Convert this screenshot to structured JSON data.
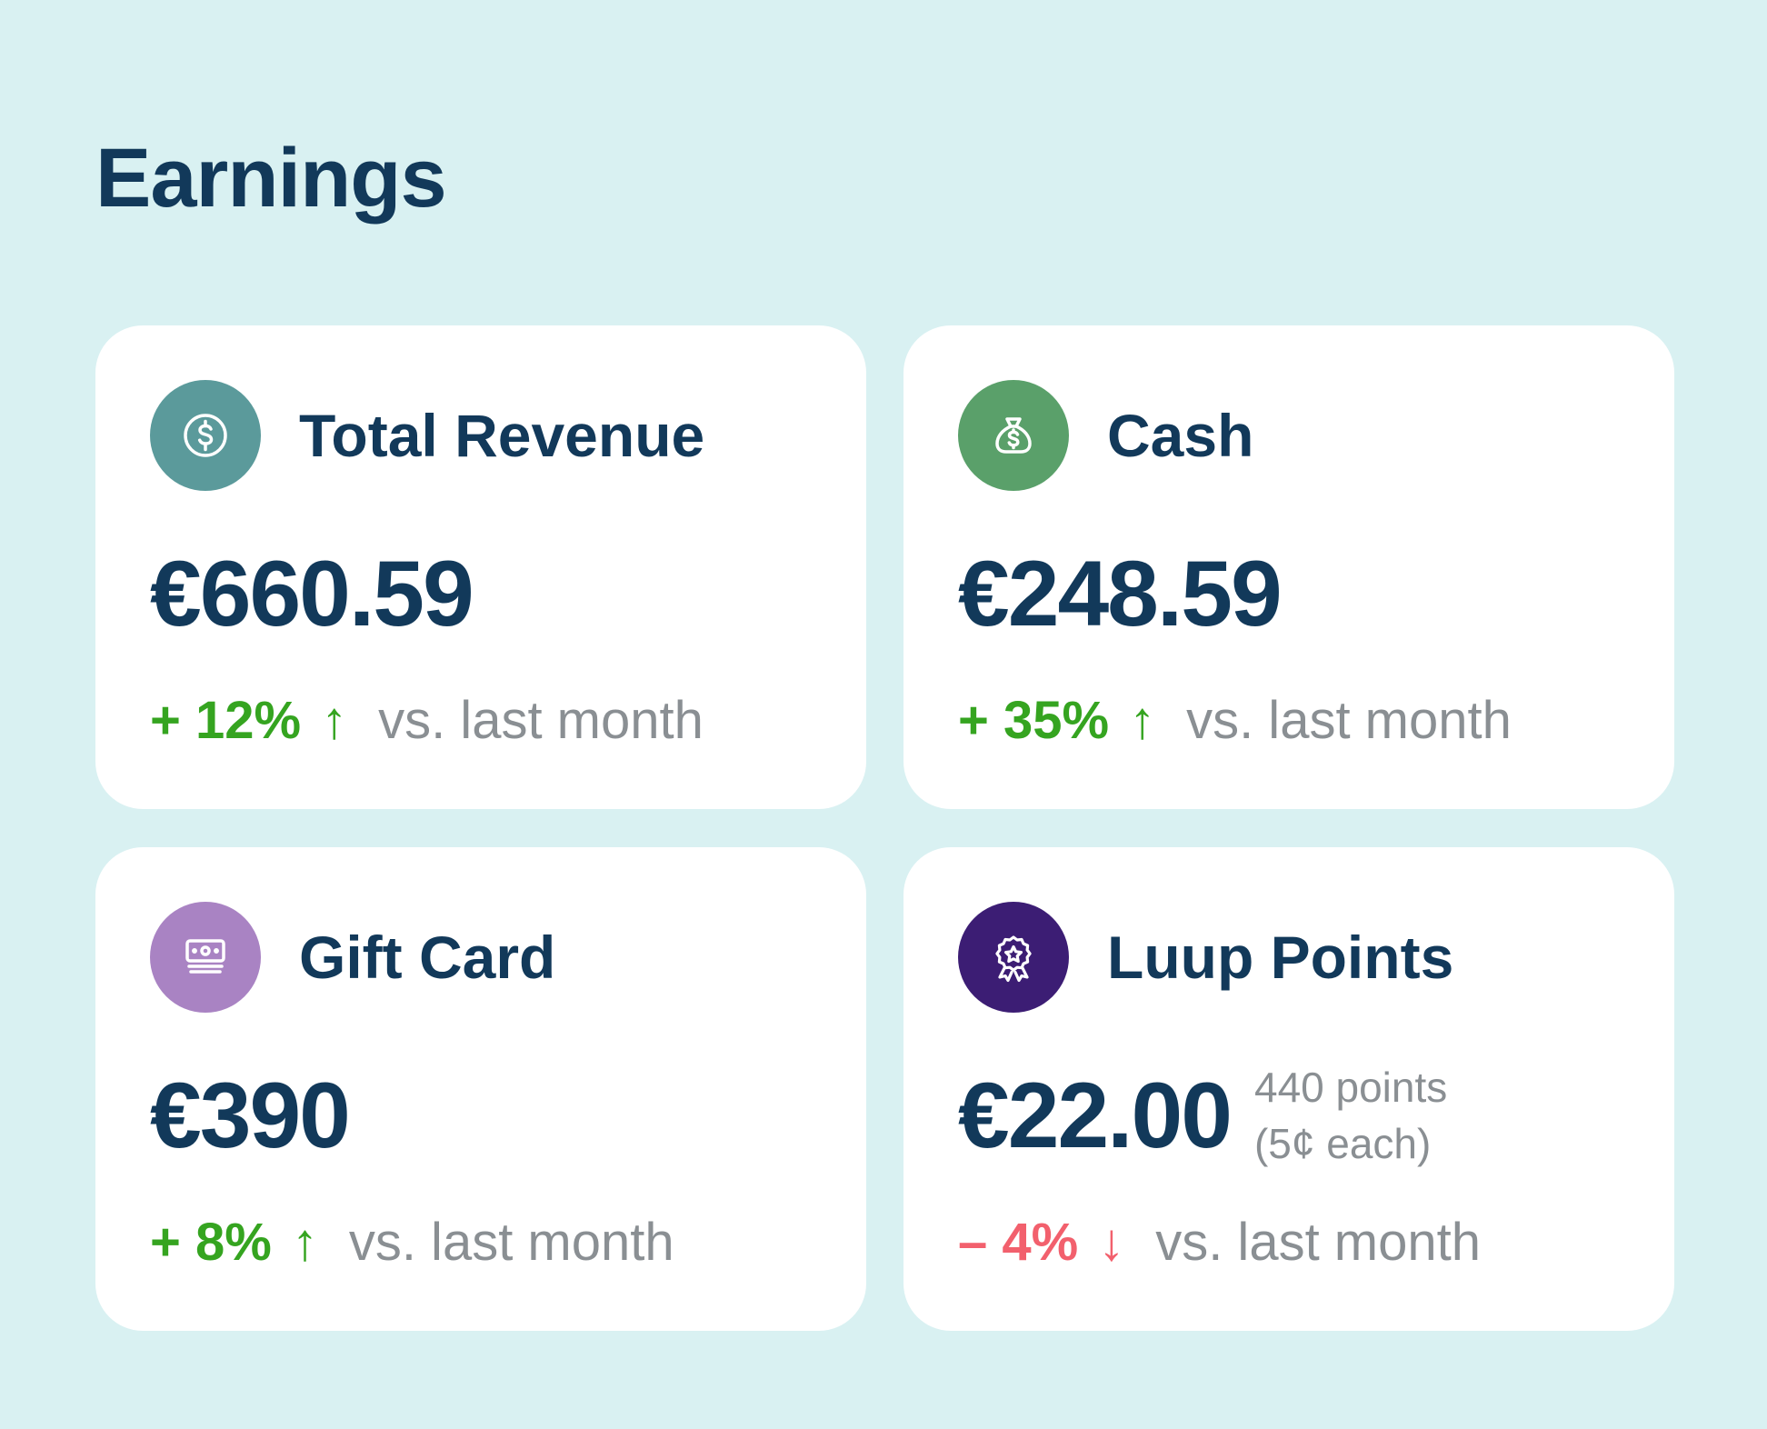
{
  "page": {
    "title": "Earnings"
  },
  "colors": {
    "background": "#d9f1f2",
    "text_primary": "#12395a",
    "text_muted": "#8a8f93",
    "positive": "#35a420",
    "negative": "#f2606d"
  },
  "cards": [
    {
      "title": "Total Revenue",
      "icon": "dollar-coin-icon",
      "icon_color": "#5b9a9b",
      "amount": "€660.59",
      "change": "+ 12%",
      "direction": "up",
      "arrow": "↑",
      "compare": "vs. last month"
    },
    {
      "title": "Cash",
      "icon": "money-bag-icon",
      "icon_color": "#5aa06a",
      "amount": "€248.59",
      "change": "+ 35%",
      "direction": "up",
      "arrow": "↑",
      "compare": "vs. last month"
    },
    {
      "title": "Gift Card",
      "icon": "gift-card-icon",
      "icon_color": "#a983c3",
      "amount": "€390",
      "change": "+ 8%",
      "direction": "up",
      "arrow": "↑",
      "compare": "vs. last month"
    },
    {
      "title": "Luup Points",
      "icon": "award-badge-icon",
      "icon_color": "#3c1d74",
      "amount": "€22.00",
      "points_line1": "440 points",
      "points_line2": "(5¢ each)",
      "change": "– 4%",
      "direction": "down",
      "arrow": "↓",
      "compare": "vs. last month"
    }
  ]
}
